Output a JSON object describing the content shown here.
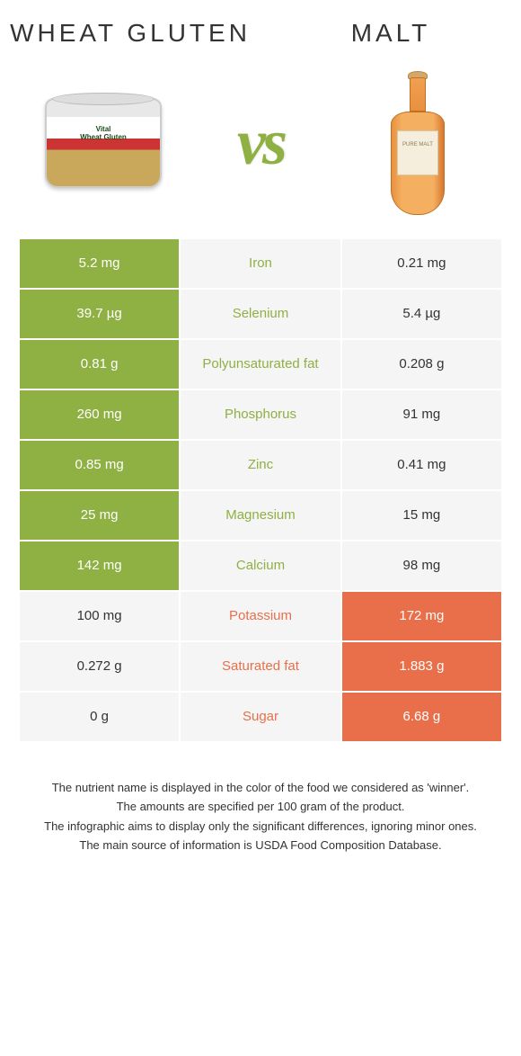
{
  "left": {
    "title": "Wheat gluten"
  },
  "right": {
    "title": "Malt"
  },
  "vs": "vs",
  "colors": {
    "green": "#8fb043",
    "orange": "#e86f4a",
    "neutral_bg": "#f5f5f5",
    "white": "#ffffff"
  },
  "product_labels": {
    "can": "Vital\nWheat Gluten",
    "bottle": "PURE MALT"
  },
  "rows": [
    {
      "nutrient": "Iron",
      "left": "5.2 mg",
      "right": "0.21 mg",
      "winner": "left"
    },
    {
      "nutrient": "Selenium",
      "left": "39.7 µg",
      "right": "5.4 µg",
      "winner": "left"
    },
    {
      "nutrient": "Polyunsaturated fat",
      "left": "0.81 g",
      "right": "0.208 g",
      "winner": "left"
    },
    {
      "nutrient": "Phosphorus",
      "left": "260 mg",
      "right": "91 mg",
      "winner": "left"
    },
    {
      "nutrient": "Zinc",
      "left": "0.85 mg",
      "right": "0.41 mg",
      "winner": "left"
    },
    {
      "nutrient": "Magnesium",
      "left": "25 mg",
      "right": "15 mg",
      "winner": "left"
    },
    {
      "nutrient": "Calcium",
      "left": "142 mg",
      "right": "98 mg",
      "winner": "left"
    },
    {
      "nutrient": "Potassium",
      "left": "100 mg",
      "right": "172 mg",
      "winner": "right"
    },
    {
      "nutrient": "Saturated fat",
      "left": "0.272 g",
      "right": "1.883 g",
      "winner": "right"
    },
    {
      "nutrient": "Sugar",
      "left": "0 g",
      "right": "6.68 g",
      "winner": "right"
    }
  ],
  "footer": [
    "The nutrient name is displayed in the color of the food we considered as 'winner'.",
    "The amounts are specified per 100 gram of the product.",
    "The infographic aims to display only the significant differences, ignoring minor ones.",
    "The main source of information is USDA Food Composition Database."
  ]
}
